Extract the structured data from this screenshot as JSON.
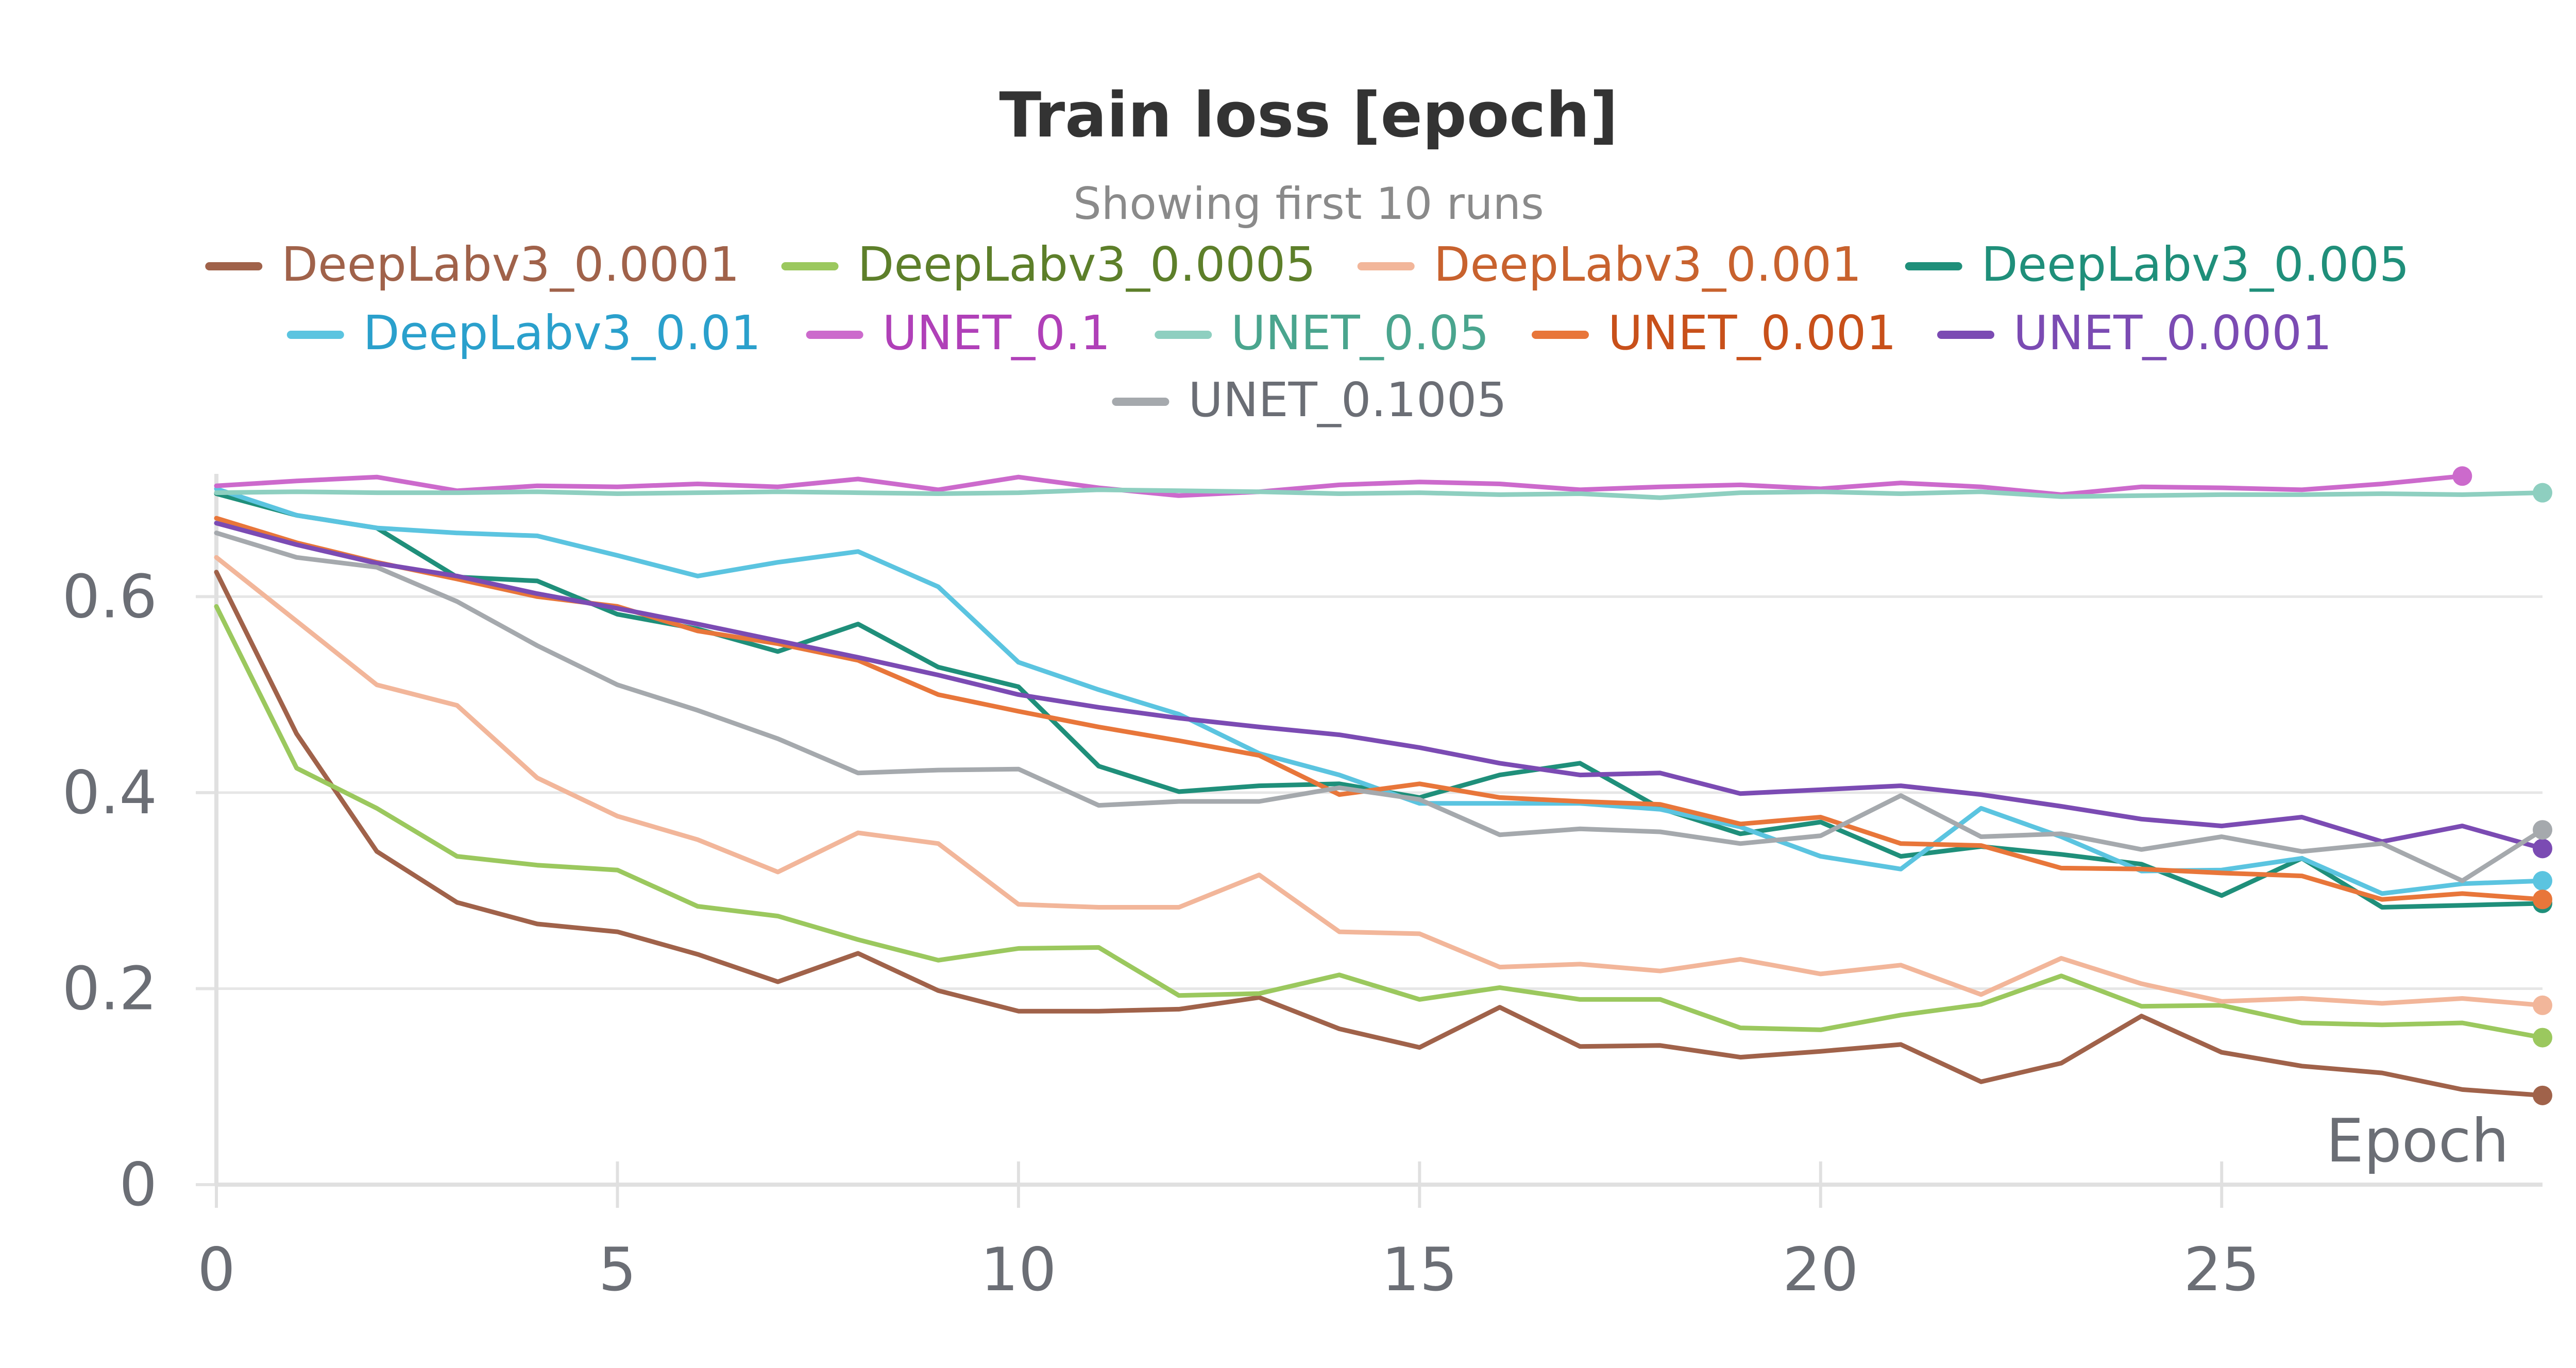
{
  "chart_data": {
    "type": "line",
    "title": "Train loss [epoch]",
    "subtitle": "Showing first 10 runs",
    "xlabel": "Epoch",
    "ylabel": "",
    "xlim": [
      0,
      29
    ],
    "ylim": [
      0,
      0.72
    ],
    "x_ticks": [
      0,
      5,
      10,
      15,
      20,
      25
    ],
    "y_ticks": [
      0,
      0.2,
      0.4,
      0.6
    ],
    "x_tick_labels": [
      "0",
      "5",
      "10",
      "15",
      "20",
      "25"
    ],
    "y_tick_labels": [
      "0",
      "0.2",
      "0.4",
      "0.6"
    ],
    "grid": true,
    "legend_position": "top",
    "series": [
      {
        "name": "DeepLabv3_0.0001",
        "color": "#a0624a",
        "text_color": "#a0624a",
        "x": [
          0,
          1,
          2,
          3,
          4,
          5,
          6,
          7,
          8,
          9,
          10,
          11,
          12,
          13,
          14,
          15,
          16,
          17,
          18,
          19,
          20,
          21,
          22,
          23,
          24,
          25,
          26,
          27,
          28,
          29
        ],
        "values": [
          0.625,
          0.46,
          0.34,
          0.288,
          0.266,
          0.258,
          0.235,
          0.207,
          0.236,
          0.198,
          0.177,
          0.177,
          0.179,
          0.191,
          0.159,
          0.14,
          0.181,
          0.141,
          0.142,
          0.13,
          0.136,
          0.143,
          0.105,
          0.124,
          0.172,
          0.135,
          0.121,
          0.114,
          0.097,
          0.091
        ]
      },
      {
        "name": "DeepLabv3_0.0005",
        "color": "#9bc85e",
        "text_color": "#5d7f2a",
        "x": [
          0,
          1,
          2,
          3,
          4,
          5,
          6,
          7,
          8,
          9,
          10,
          11,
          12,
          13,
          14,
          15,
          16,
          17,
          18,
          19,
          20,
          21,
          22,
          23,
          24,
          25,
          26,
          27,
          28,
          29
        ],
        "values": [
          0.59,
          0.425,
          0.384,
          0.335,
          0.326,
          0.321,
          0.284,
          0.274,
          0.25,
          0.229,
          0.241,
          0.242,
          0.193,
          0.195,
          0.214,
          0.189,
          0.201,
          0.189,
          0.189,
          0.16,
          0.158,
          0.173,
          0.184,
          0.213,
          0.182,
          0.183,
          0.165,
          0.163,
          0.165,
          0.15
        ]
      },
      {
        "name": "DeepLabv3_0.001",
        "color": "#f2b69a",
        "text_color": "#c8622e",
        "x": [
          0,
          1,
          2,
          3,
          4,
          5,
          6,
          7,
          8,
          9,
          10,
          11,
          12,
          13,
          14,
          15,
          16,
          17,
          18,
          19,
          20,
          21,
          22,
          23,
          24,
          25,
          26,
          27,
          28,
          29
        ],
        "values": [
          0.64,
          0.575,
          0.51,
          0.489,
          0.415,
          0.376,
          0.352,
          0.319,
          0.359,
          0.348,
          0.286,
          0.283,
          0.283,
          0.316,
          0.258,
          0.256,
          0.222,
          0.225,
          0.218,
          0.23,
          0.215,
          0.224,
          0.194,
          0.231,
          0.205,
          0.187,
          0.19,
          0.185,
          0.19,
          0.183
        ]
      },
      {
        "name": "DeepLabv3_0.005",
        "color": "#1f8f7a",
        "text_color": "#1f8f7a",
        "x": [
          0,
          1,
          2,
          3,
          4,
          5,
          6,
          7,
          8,
          9,
          10,
          11,
          12,
          13,
          14,
          15,
          16,
          17,
          18,
          19,
          20,
          21,
          22,
          23,
          24,
          25,
          26,
          27,
          28,
          29
        ],
        "values": [
          0.705,
          0.683,
          0.67,
          0.62,
          0.616,
          0.582,
          0.567,
          0.544,
          0.572,
          0.528,
          0.508,
          0.427,
          0.401,
          0.407,
          0.409,
          0.395,
          0.418,
          0.43,
          0.384,
          0.358,
          0.37,
          0.335,
          0.345,
          0.337,
          0.327,
          0.295,
          0.333,
          0.283,
          0.285,
          0.287
        ]
      },
      {
        "name": "DeepLabv3_0.01",
        "color": "#5bc4e0",
        "text_color": "#2aa0cc",
        "x": [
          0,
          1,
          2,
          3,
          4,
          5,
          6,
          7,
          8,
          9,
          10,
          11,
          12,
          13,
          14,
          15,
          16,
          17,
          18,
          19,
          20,
          21,
          22,
          23,
          24,
          25,
          26,
          27,
          28,
          29
        ],
        "values": [
          0.71,
          0.683,
          0.67,
          0.665,
          0.662,
          0.642,
          0.621,
          0.635,
          0.646,
          0.61,
          0.533,
          0.505,
          0.48,
          0.44,
          0.418,
          0.389,
          0.389,
          0.389,
          0.383,
          0.365,
          0.335,
          0.322,
          0.384,
          0.355,
          0.32,
          0.321,
          0.333,
          0.297,
          0.307,
          0.31
        ]
      },
      {
        "name": "UNET_0.1",
        "color": "#cc6acc",
        "text_color": "#b040b8",
        "x": [
          0,
          1,
          2,
          3,
          4,
          5,
          6,
          7,
          8,
          9,
          10,
          11,
          12,
          13,
          14,
          15,
          16,
          17,
          18,
          19,
          20,
          21,
          22,
          23,
          24,
          25,
          26,
          27,
          28
        ],
        "values": [
          0.713,
          0.718,
          0.722,
          0.708,
          0.713,
          0.712,
          0.715,
          0.712,
          0.72,
          0.709,
          0.722,
          0.711,
          0.703,
          0.707,
          0.714,
          0.717,
          0.715,
          0.709,
          0.712,
          0.714,
          0.71,
          0.716,
          0.712,
          0.704,
          0.712,
          0.711,
          0.709,
          0.715,
          0.723
        ]
      },
      {
        "name": "UNET_0.05",
        "color": "#8ecfc0",
        "text_color": "#4aa58e",
        "x": [
          0,
          1,
          2,
          3,
          4,
          5,
          6,
          7,
          8,
          9,
          10,
          11,
          12,
          13,
          14,
          15,
          16,
          17,
          18,
          19,
          20,
          21,
          22,
          23,
          24,
          25,
          26,
          27,
          28,
          29
        ],
        "values": [
          0.706,
          0.707,
          0.706,
          0.706,
          0.707,
          0.705,
          0.706,
          0.707,
          0.706,
          0.705,
          0.706,
          0.709,
          0.708,
          0.707,
          0.705,
          0.706,
          0.704,
          0.705,
          0.701,
          0.706,
          0.707,
          0.705,
          0.707,
          0.702,
          0.703,
          0.704,
          0.704,
          0.705,
          0.704,
          0.706
        ]
      },
      {
        "name": "UNET_0.001",
        "color": "#e8763a",
        "text_color": "#c8501a",
        "x": [
          0,
          1,
          2,
          3,
          4,
          5,
          6,
          7,
          8,
          9,
          10,
          11,
          12,
          13,
          14,
          15,
          16,
          17,
          18,
          19,
          20,
          21,
          22,
          23,
          24,
          25,
          26,
          27,
          28,
          29
        ],
        "values": [
          0.68,
          0.655,
          0.635,
          0.618,
          0.6,
          0.59,
          0.565,
          0.552,
          0.535,
          0.5,
          0.483,
          0.467,
          0.453,
          0.438,
          0.398,
          0.409,
          0.395,
          0.391,
          0.388,
          0.368,
          0.375,
          0.348,
          0.346,
          0.323,
          0.322,
          0.318,
          0.315,
          0.291,
          0.297,
          0.291
        ]
      },
      {
        "name": "UNET_0.0001",
        "color": "#7b4bb3",
        "text_color": "#7b4bb3",
        "x": [
          0,
          1,
          2,
          3,
          4,
          5,
          6,
          7,
          8,
          9,
          10,
          11,
          12,
          13,
          14,
          15,
          16,
          17,
          18,
          19,
          20,
          21,
          22,
          23,
          24,
          25,
          26,
          27,
          28,
          29
        ],
        "values": [
          0.675,
          0.653,
          0.634,
          0.621,
          0.603,
          0.588,
          0.572,
          0.555,
          0.538,
          0.52,
          0.5,
          0.487,
          0.476,
          0.467,
          0.459,
          0.446,
          0.43,
          0.418,
          0.42,
          0.399,
          0.403,
          0.407,
          0.398,
          0.386,
          0.373,
          0.366,
          0.375,
          0.35,
          0.366,
          0.343
        ]
      },
      {
        "name": "UNET_0.1005",
        "color": "#a5a9ad",
        "text_color": "#6b6e75",
        "x": [
          0,
          1,
          2,
          3,
          4,
          5,
          6,
          7,
          8,
          9,
          10,
          11,
          12,
          13,
          14,
          15,
          16,
          17,
          18,
          19,
          20,
          21,
          22,
          23,
          24,
          25,
          26,
          27,
          28,
          29
        ],
        "values": [
          0.665,
          0.64,
          0.63,
          0.595,
          0.55,
          0.51,
          0.484,
          0.455,
          0.42,
          0.423,
          0.424,
          0.387,
          0.391,
          0.391,
          0.405,
          0.393,
          0.357,
          0.363,
          0.36,
          0.348,
          0.356,
          0.397,
          0.355,
          0.358,
          0.342,
          0.355,
          0.34,
          0.348,
          0.31,
          0.362
        ]
      }
    ]
  }
}
